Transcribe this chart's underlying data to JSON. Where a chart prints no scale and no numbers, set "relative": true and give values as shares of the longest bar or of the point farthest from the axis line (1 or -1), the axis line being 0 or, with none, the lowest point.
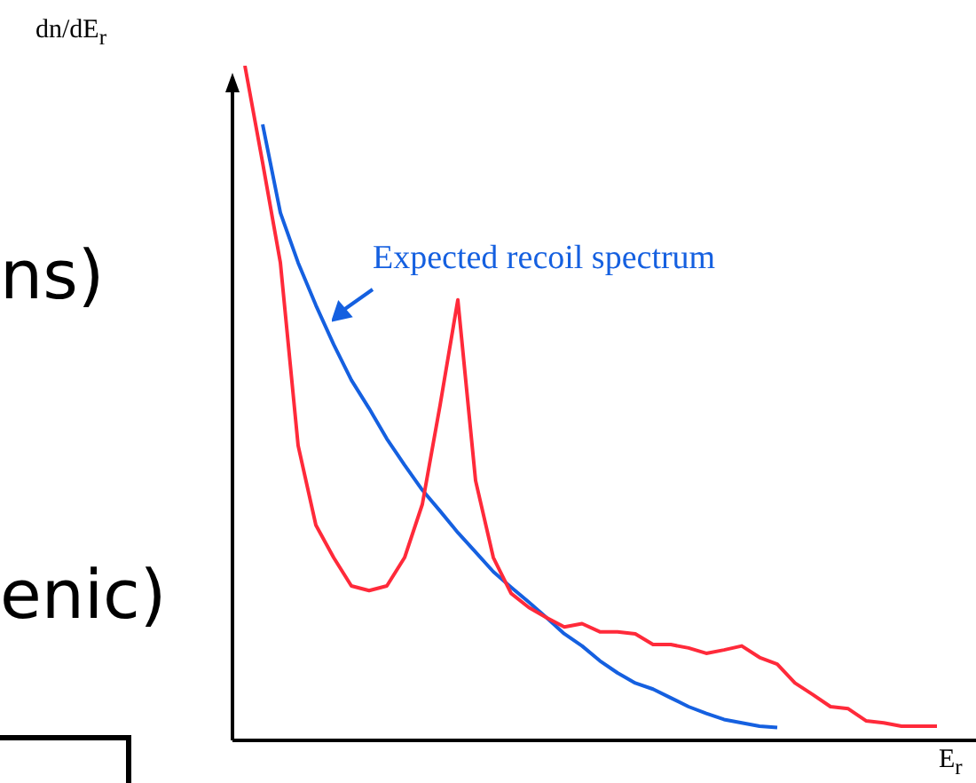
{
  "chart_data": {
    "type": "line",
    "relative": true,
    "xlabel": "E$_{r}$",
    "ylabel": "dn/dE$_{r}$",
    "annotations": [
      "ns)",
      "enic)"
    ],
    "categories": [
      null,
      null,
      null,
      null,
      null,
      null,
      null,
      null,
      null,
      null,
      null,
      null,
      null,
      null,
      null,
      null,
      null,
      null,
      null,
      null,
      null,
      null,
      null,
      null,
      null,
      null,
      null,
      null,
      null,
      null,
      null,
      null,
      null,
      null,
      null,
      null,
      null,
      null,
      null,
      null
    ],
    "marker": "none",
    "series": [
      {
        "color": "#ff2a3a",
        "values": [
          1,
          0.856,
          0.708,
          0.437,
          0.319,
          0.271,
          0.229,
          0.222,
          0.229,
          0.271,
          0.35,
          0.497,
          0.653,
          0.385,
          0.271,
          0.218,
          0.197,
          0.182,
          0.168,
          0.173,
          0.161,
          0.161,
          0.158,
          0.142,
          0.142,
          0.137,
          0.129,
          0.134,
          0.14,
          0.123,
          0.113,
          0.085,
          0.068,
          0.05,
          0.047,
          0.029,
          0.026,
          0.021,
          0.021,
          0.021
        ]
      },
      {
        "name": "Expected recoil spectrum",
        "color": "#1560e0",
        "values": [
          null,
          0.913,
          0.782,
          0.708,
          0.645,
          0.587,
          0.534,
          0.492,
          0.447,
          0.408,
          0.371,
          0.34,
          0.308,
          0.279,
          0.25,
          0.227,
          0.205,
          0.182,
          0.158,
          0.14,
          0.118,
          0.1,
          0.085,
          0.076,
          0.063,
          0.05,
          0.04,
          0.031,
          0.026,
          0.021,
          0.019,
          null,
          null,
          null,
          null,
          null,
          null,
          null,
          null,
          null
        ]
      }
    ]
  }
}
